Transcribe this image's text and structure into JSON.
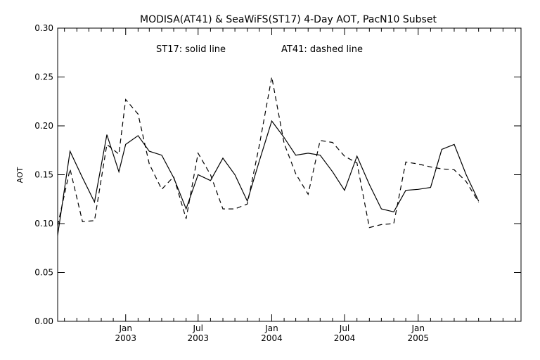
{
  "chart_data": {
    "type": "line",
    "title": "MODISA(AT41) & SeaWiFS(ST17) 4-Day AOT, PacN10 Subset",
    "annotation_st17": "ST17: solid line",
    "annotation_at41": "AT41: dashed line",
    "ylabel": "AOT",
    "xlabel": "",
    "ylim": [
      0.0,
      0.3
    ],
    "y_ticks": [
      "0.00",
      "0.05",
      "0.10",
      "0.15",
      "0.20",
      "0.25",
      "0.30"
    ],
    "x_range": [
      "2002-07-15",
      "2005-09-15"
    ],
    "x_ticks": [
      {
        "date": "2003-01-01",
        "month": "Jan",
        "year": "2003"
      },
      {
        "date": "2003-07-01",
        "month": "Jul",
        "year": "2003"
      },
      {
        "date": "2004-01-01",
        "month": "Jan",
        "year": "2004"
      },
      {
        "date": "2004-07-01",
        "month": "Jul",
        "year": "2004"
      },
      {
        "date": "2005-01-01",
        "month": "Jan",
        "year": "2005"
      }
    ],
    "x_minor_ticks": [
      "2002-08-01",
      "2002-09-01",
      "2002-10-01",
      "2002-11-01",
      "2002-12-01",
      "2003-02-01",
      "2003-03-01",
      "2003-04-01",
      "2003-05-01",
      "2003-06-01",
      "2003-08-01",
      "2003-09-01",
      "2003-10-01",
      "2003-11-01",
      "2003-12-01",
      "2004-02-01",
      "2004-03-01",
      "2004-04-01",
      "2004-05-01",
      "2004-06-01",
      "2004-08-01",
      "2004-09-01",
      "2004-10-01",
      "2004-11-01",
      "2004-12-01",
      "2005-02-01",
      "2005-03-01",
      "2005-04-01",
      "2005-05-01",
      "2005-06-01",
      "2005-07-01",
      "2005-08-01",
      "2005-09-01"
    ],
    "grid": false,
    "series": [
      {
        "style": "solid",
        "points": [
          [
            "2002-07-15",
            0.088
          ],
          [
            "2002-08-15",
            0.174
          ],
          [
            "2002-09-15",
            0.147
          ],
          [
            "2002-10-15",
            0.122
          ],
          [
            "2002-11-15",
            0.191
          ],
          [
            "2002-12-15",
            0.153
          ],
          [
            "2003-01-01",
            0.181
          ],
          [
            "2003-02-01",
            0.19
          ],
          [
            "2003-03-01",
            0.174
          ],
          [
            "2003-04-01",
            0.17
          ],
          [
            "2003-05-01",
            0.147
          ],
          [
            "2003-06-01",
            0.115
          ],
          [
            "2003-07-01",
            0.15
          ],
          [
            "2003-08-01",
            0.144
          ],
          [
            "2003-09-01",
            0.167
          ],
          [
            "2003-10-01",
            0.15
          ],
          [
            "2003-11-01",
            0.123
          ],
          [
            "2003-12-01",
            0.164
          ],
          [
            "2004-01-01",
            0.205
          ],
          [
            "2004-02-01",
            0.188
          ],
          [
            "2004-03-01",
            0.17
          ],
          [
            "2004-04-01",
            0.172
          ],
          [
            "2004-05-01",
            0.17
          ],
          [
            "2004-06-01",
            0.153
          ],
          [
            "2004-07-01",
            0.134
          ],
          [
            "2004-08-01",
            0.169
          ],
          [
            "2004-09-01",
            0.14
          ],
          [
            "2004-10-01",
            0.115
          ],
          [
            "2004-11-01",
            0.112
          ],
          [
            "2004-12-01",
            0.134
          ],
          [
            "2005-01-01",
            0.135
          ],
          [
            "2005-02-01",
            0.137
          ],
          [
            "2005-03-01",
            0.176
          ],
          [
            "2005-04-01",
            0.181
          ],
          [
            "2005-05-01",
            0.15
          ],
          [
            "2005-06-01",
            0.123
          ]
        ]
      },
      {
        "style": "dashed",
        "points": [
          [
            "2002-07-15",
            0.098
          ],
          [
            "2002-08-15",
            0.156
          ],
          [
            "2002-09-15",
            0.102
          ],
          [
            "2002-10-15",
            0.103
          ],
          [
            "2002-11-15",
            0.181
          ],
          [
            "2002-12-15",
            0.171
          ],
          [
            "2003-01-01",
            0.227
          ],
          [
            "2003-02-01",
            0.212
          ],
          [
            "2003-03-01",
            0.161
          ],
          [
            "2003-04-01",
            0.135
          ],
          [
            "2003-05-01",
            0.148
          ],
          [
            "2003-06-01",
            0.105
          ],
          [
            "2003-07-01",
            0.172
          ],
          [
            "2003-08-01",
            0.15
          ],
          [
            "2003-09-01",
            0.115
          ],
          [
            "2003-10-01",
            0.115
          ],
          [
            "2003-11-01",
            0.12
          ],
          [
            "2003-12-01",
            0.18
          ],
          [
            "2004-01-01",
            0.25
          ],
          [
            "2004-02-01",
            0.182
          ],
          [
            "2004-03-01",
            0.151
          ],
          [
            "2004-04-01",
            0.13
          ],
          [
            "2004-05-01",
            0.185
          ],
          [
            "2004-06-01",
            0.183
          ],
          [
            "2004-07-01",
            0.169
          ],
          [
            "2004-08-01",
            0.162
          ],
          [
            "2004-09-01",
            0.096
          ],
          [
            "2004-10-01",
            0.099
          ],
          [
            "2004-11-01",
            0.1
          ],
          [
            "2004-12-01",
            0.163
          ],
          [
            "2005-01-01",
            0.161
          ],
          [
            "2005-02-01",
            0.158
          ],
          [
            "2005-03-01",
            0.156
          ],
          [
            "2005-04-01",
            0.155
          ],
          [
            "2005-05-01",
            0.143
          ],
          [
            "2005-06-01",
            0.122
          ]
        ]
      }
    ]
  }
}
